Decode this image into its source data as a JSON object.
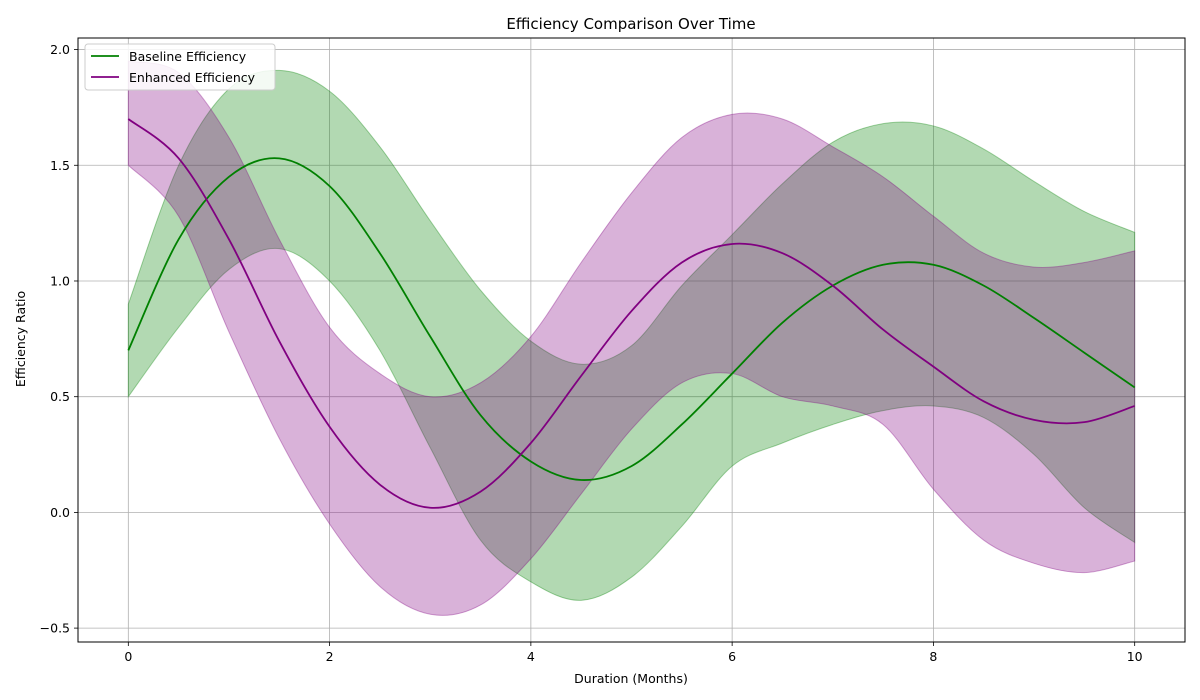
{
  "chart_data": {
    "type": "line",
    "title": "Efficiency Comparison Over Time",
    "xlabel": "Duration (Months)",
    "ylabel": "Efficiency Ratio",
    "xlim": [
      -0.5,
      10.5
    ],
    "ylim": [
      -0.56,
      2.05
    ],
    "xticks": [
      0,
      2,
      4,
      6,
      8,
      10
    ],
    "yticks": [
      -0.5,
      0.0,
      0.5,
      1.0,
      1.5,
      2.0
    ],
    "xtick_labels": [
      "0",
      "2",
      "4",
      "6",
      "8",
      "10"
    ],
    "ytick_labels": [
      "−0.5",
      "0.0",
      "0.5",
      "1.0",
      "1.5",
      "2.0"
    ],
    "grid": true,
    "legend_position": "top-left",
    "series": [
      {
        "name": "Baseline Efficiency",
        "color": "#008000",
        "band_color": "#008000",
        "band_opacity": 0.3,
        "x": [
          0,
          0.5,
          1,
          1.5,
          2,
          2.5,
          3,
          3.5,
          4,
          4.5,
          5,
          5.5,
          6,
          6.5,
          7,
          7.5,
          8,
          8.5,
          9,
          9.5,
          10
        ],
        "y": [
          0.7,
          1.18,
          1.45,
          1.53,
          1.41,
          1.12,
          0.76,
          0.42,
          0.22,
          0.14,
          0.2,
          0.38,
          0.6,
          0.82,
          0.98,
          1.07,
          1.07,
          0.98,
          0.84,
          0.69,
          0.54
        ],
        "upper": [
          0.9,
          1.5,
          1.83,
          1.91,
          1.82,
          1.58,
          1.26,
          0.96,
          0.74,
          0.64,
          0.72,
          0.98,
          1.2,
          1.42,
          1.6,
          1.68,
          1.67,
          1.57,
          1.43,
          1.3,
          1.21
        ],
        "lower": [
          0.5,
          0.8,
          1.05,
          1.14,
          1.0,
          0.7,
          0.28,
          -0.12,
          -0.3,
          -0.38,
          -0.28,
          -0.06,
          0.2,
          0.3,
          0.38,
          0.44,
          0.46,
          0.41,
          0.25,
          0.02,
          -0.13
        ]
      },
      {
        "name": "Enhanced Efficiency",
        "color": "#800080",
        "band_color": "#800080",
        "band_opacity": 0.3,
        "x": [
          0,
          0.5,
          1,
          1.5,
          2,
          2.5,
          3,
          3.5,
          4,
          4.5,
          5,
          5.5,
          6,
          6.5,
          7,
          7.5,
          8,
          8.5,
          9,
          9.5,
          10
        ],
        "y": [
          1.7,
          1.53,
          1.18,
          0.74,
          0.37,
          0.12,
          0.02,
          0.09,
          0.3,
          0.59,
          0.87,
          1.08,
          1.16,
          1.12,
          0.98,
          0.79,
          0.63,
          0.48,
          0.4,
          0.39,
          0.46
        ],
        "upper": [
          1.95,
          1.9,
          1.62,
          1.18,
          0.8,
          0.6,
          0.5,
          0.56,
          0.76,
          1.08,
          1.38,
          1.62,
          1.72,
          1.7,
          1.58,
          1.45,
          1.28,
          1.12,
          1.06,
          1.08,
          1.13
        ],
        "lower": [
          1.5,
          1.28,
          0.78,
          0.32,
          -0.05,
          -0.32,
          -0.44,
          -0.4,
          -0.2,
          0.08,
          0.36,
          0.56,
          0.6,
          0.5,
          0.46,
          0.38,
          0.1,
          -0.12,
          -0.22,
          -0.26,
          -0.21
        ]
      }
    ]
  }
}
